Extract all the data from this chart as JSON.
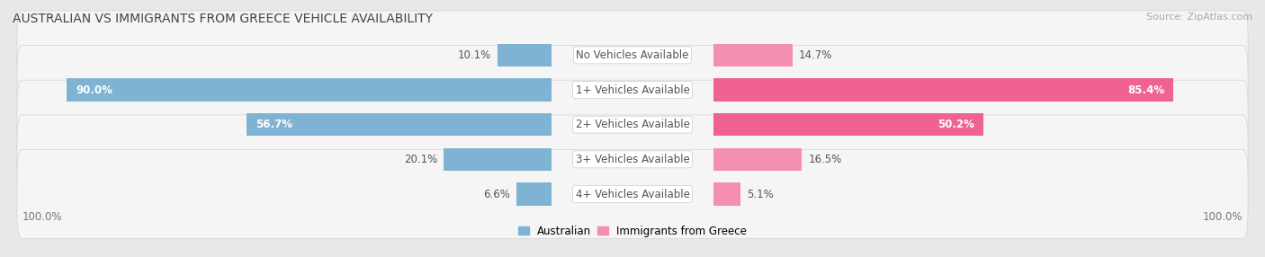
{
  "title": "AUSTRALIAN VS IMMIGRANTS FROM GREECE VEHICLE AVAILABILITY",
  "source": "Source: ZipAtlas.com",
  "categories": [
    "No Vehicles Available",
    "1+ Vehicles Available",
    "2+ Vehicles Available",
    "3+ Vehicles Available",
    "4+ Vehicles Available"
  ],
  "australian_values": [
    10.1,
    90.0,
    56.7,
    20.1,
    6.6
  ],
  "greece_values": [
    14.7,
    85.4,
    50.2,
    16.5,
    5.1
  ],
  "australian_color": "#7fb3d3",
  "greece_color": "#f48fb1",
  "greece_color_strong": "#f06292",
  "bg_color": "#e8e8e8",
  "row_bg_color": "#f5f5f5",
  "row_edge_color": "#d8d8d8",
  "axis_label_left": "100.0%",
  "axis_label_right": "100.0%",
  "legend_australian": "Australian",
  "legend_greece": "Immigrants from Greece",
  "max_val": 100.0,
  "title_fontsize": 10,
  "source_fontsize": 8,
  "bar_label_fontsize": 8.5,
  "category_fontsize": 8.5,
  "bar_height": 0.65
}
